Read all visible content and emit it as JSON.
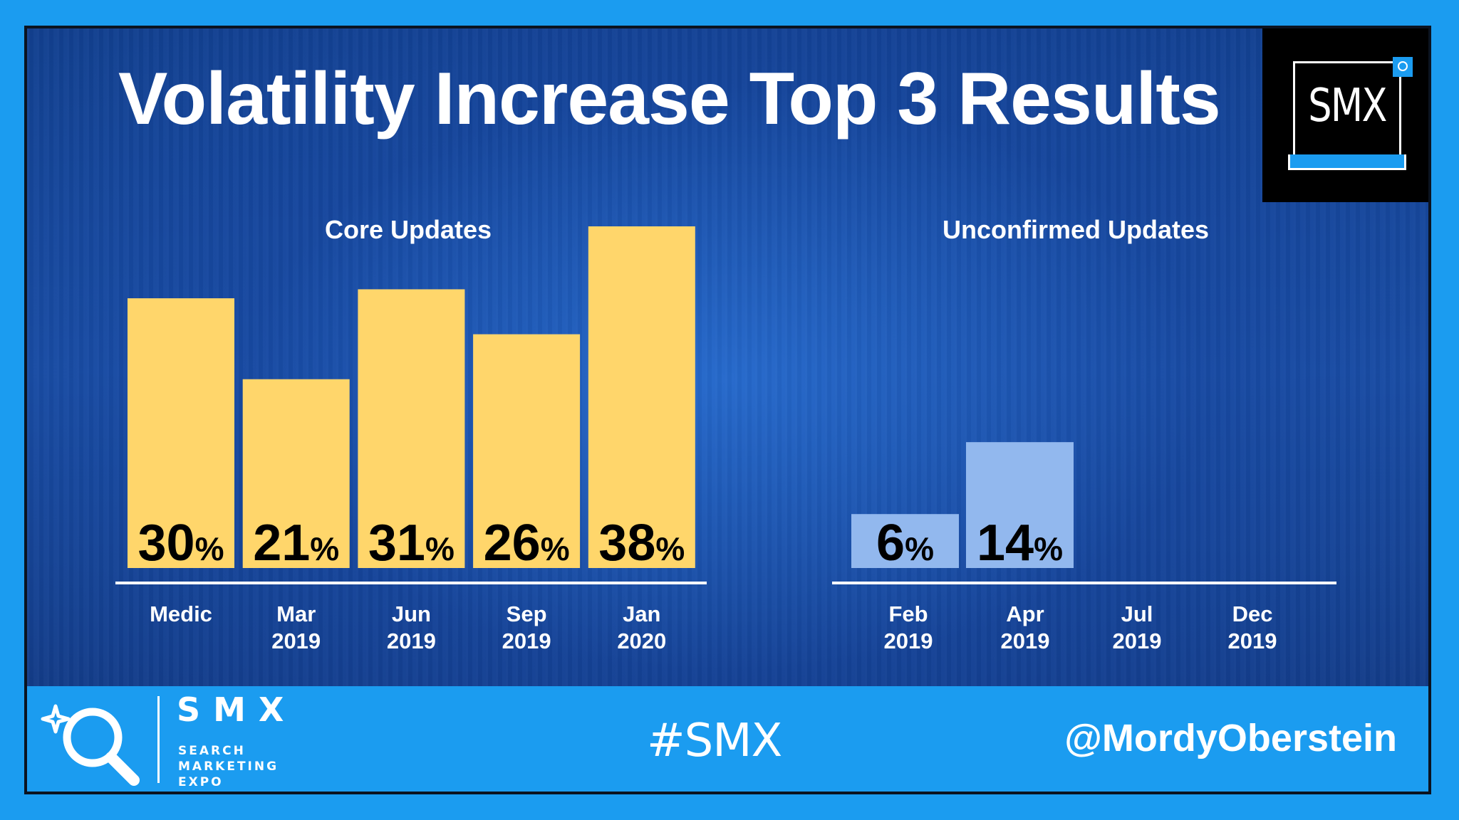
{
  "slide": {
    "title": "Volatility Increase Top 3 Results"
  },
  "corner_logo": {
    "text": "SMX",
    "icon": "magnifier-icon"
  },
  "chart_data": [
    {
      "type": "bar",
      "title": "Core Updates",
      "categories": [
        "Medic",
        "Mar 2019",
        "Jun 2019",
        "Sep 2019",
        "Jan 2020"
      ],
      "values": [
        30,
        21,
        31,
        26,
        38
      ],
      "value_suffix": "%",
      "ylim": [
        0,
        38
      ],
      "bar_color": "#ffd66b",
      "label_color": "#000000",
      "grid": false
    },
    {
      "type": "bar",
      "title": "Unconfirmed Updates",
      "categories": [
        "Feb 2019",
        "Apr 2019",
        "Jul 2019",
        "Dec 2019"
      ],
      "values": [
        6,
        14,
        null,
        null
      ],
      "value_suffix": "%",
      "ylim": [
        0,
        38
      ],
      "bar_color": "#92b8ee",
      "label_color": "#000000",
      "grid": false
    }
  ],
  "footer": {
    "brand": "SMX",
    "tagline": [
      "SEARCH",
      "MARKETING",
      "EXPO"
    ],
    "hashtag": "#SMX",
    "handle": "@MordyOberstein",
    "logo_icon": "magnifier-sparkle-icon",
    "background": "#1b9cf0"
  }
}
